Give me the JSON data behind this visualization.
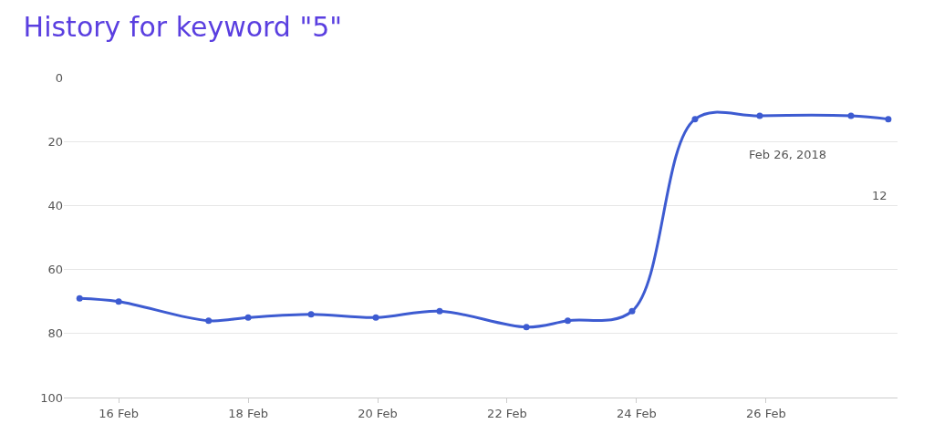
{
  "chart_data": {
    "type": "line",
    "title": "History for keyword \"5\"",
    "x": [
      "2018-02-15T09:30",
      "2018-02-16T00:00",
      "2018-02-17T09:20",
      "2018-02-18T00:00",
      "2018-02-18T23:20",
      "2018-02-19T23:20",
      "2018-02-20T23:00",
      "2018-02-22T07:10",
      "2018-02-22T22:30",
      "2018-02-23T22:20",
      "2018-02-24T21:40",
      "2018-02-25T21:40",
      "2018-02-27T07:30",
      "2018-02-27T21:20"
    ],
    "series": [
      {
        "color": "#3d5bd1",
        "values": [
          69,
          70,
          76,
          75,
          74,
          75,
          73,
          78,
          76,
          73,
          13,
          12,
          12,
          13
        ]
      }
    ],
    "annotations": [
      "Feb 26, 2018",
      "12"
    ],
    "xlim": [
      "2018-02-15T03:40",
      "2018-02-28T00:45"
    ],
    "xticks": [
      {
        "value": "2018-02-16",
        "label": "16 Feb"
      },
      {
        "value": "2018-02-18",
        "label": "18 Feb"
      },
      {
        "value": "2018-02-20",
        "label": "20 Feb"
      },
      {
        "value": "2018-02-22",
        "label": "22 Feb"
      },
      {
        "value": "2018-02-24",
        "label": "24 Feb"
      },
      {
        "value": "2018-02-26",
        "label": "26 Feb"
      }
    ],
    "ylim": [
      100,
      0
    ],
    "yticks": [
      0,
      20,
      40,
      60,
      80,
      100
    ],
    "grid": "y",
    "marker": "circle",
    "line_style": "solid"
  }
}
